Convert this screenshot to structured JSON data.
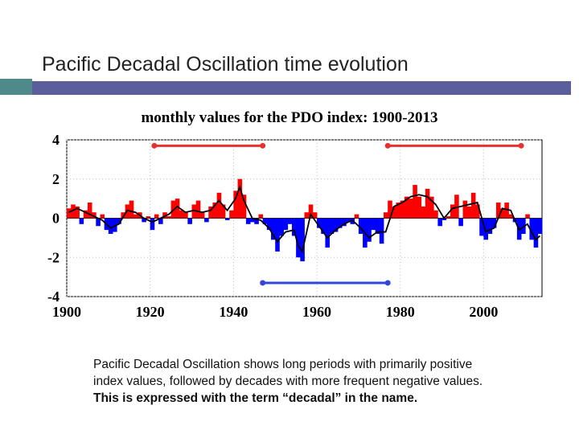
{
  "slide": {
    "title": "Pacific Decadal Oscillation time evolution",
    "caption_line1": "Pacific Decadal Oscillation shows long periods with primarily positive",
    "caption_line2": "index values, followed by decades with more frequent negative values.",
    "caption_line3": "This is expressed with the term “decadal” in the name."
  },
  "colors": {
    "positive": "#ff0000",
    "negative": "#0000ff",
    "smoothed": "#000000",
    "accent_bar": "#5a5f9c",
    "accent_teal": "#4f8a8b"
  },
  "chart_data": {
    "type": "bar",
    "title": "monthly values for the PDO index: 1900-2013",
    "xlabel": "",
    "ylabel": "",
    "xlim": [
      1900,
      2014
    ],
    "ylim": [
      -4,
      4
    ],
    "x_ticks": [
      1900,
      1920,
      1940,
      1960,
      1980,
      2000
    ],
    "y_ticks": [
      4,
      2,
      0,
      -2,
      -4
    ],
    "grid": true,
    "series": [
      {
        "kind": "annual_index_bars",
        "x": [
          1900,
          1901,
          1902,
          1903,
          1904,
          1905,
          1906,
          1907,
          1908,
          1909,
          1910,
          1911,
          1912,
          1913,
          1914,
          1915,
          1916,
          1917,
          1918,
          1919,
          1920,
          1921,
          1922,
          1923,
          1924,
          1925,
          1926,
          1927,
          1928,
          1929,
          1930,
          1931,
          1932,
          1933,
          1934,
          1935,
          1936,
          1937,
          1938,
          1939,
          1940,
          1941,
          1942,
          1943,
          1944,
          1945,
          1946,
          1947,
          1948,
          1949,
          1950,
          1951,
          1952,
          1953,
          1954,
          1955,
          1956,
          1957,
          1958,
          1959,
          1960,
          1961,
          1962,
          1963,
          1964,
          1965,
          1966,
          1967,
          1968,
          1969,
          1970,
          1971,
          1972,
          1973,
          1974,
          1975,
          1976,
          1977,
          1978,
          1979,
          1980,
          1981,
          1982,
          1983,
          1984,
          1985,
          1986,
          1987,
          1988,
          1989,
          1990,
          1991,
          1992,
          1993,
          1994,
          1995,
          1996,
          1997,
          1998,
          1999,
          2000,
          2001,
          2002,
          2003,
          2004,
          2005,
          2006,
          2007,
          2008,
          2009,
          2010,
          2011,
          2012,
          2013
        ],
        "values": [
          0.5,
          0.7,
          0.6,
          -0.3,
          0.4,
          0.8,
          0.3,
          -0.4,
          0.2,
          -0.6,
          -0.8,
          -0.7,
          -0.3,
          0.3,
          0.7,
          0.9,
          0.2,
          0.3,
          -0.2,
          0.1,
          -0.6,
          0.2,
          -0.3,
          0.3,
          0.1,
          0.9,
          1.0,
          0.4,
          0.3,
          -0.3,
          0.7,
          0.9,
          0.3,
          -0.2,
          0.6,
          0.8,
          1.3,
          0.7,
          -0.1,
          0.4,
          1.4,
          2.0,
          1.2,
          -0.3,
          -0.2,
          -0.3,
          0.2,
          -0.3,
          -0.6,
          -1.1,
          -1.7,
          -0.9,
          -0.6,
          -0.3,
          -0.9,
          -2.0,
          -2.2,
          0.3,
          0.7,
          0.3,
          -0.5,
          -0.8,
          -1.5,
          -0.8,
          -0.7,
          -0.5,
          -0.4,
          -0.2,
          -0.3,
          0.2,
          -0.8,
          -1.5,
          -1.2,
          -0.6,
          -0.8,
          -1.3,
          0.3,
          0.9,
          0.6,
          0.8,
          0.9,
          1.1,
          1.0,
          1.7,
          1.1,
          0.6,
          1.5,
          1.1,
          0.4,
          -0.4,
          -0.1,
          0.1,
          0.7,
          1.2,
          -0.4,
          0.9,
          0.6,
          1.3,
          0.7,
          -0.9,
          -1.1,
          -0.8,
          -0.5,
          0.8,
          0.5,
          0.8,
          0.2,
          -0.2,
          -1.1,
          -0.8,
          0.2,
          -1.1,
          -1.5,
          -0.8
        ]
      },
      {
        "kind": "smoothed_line",
        "x": [
          1900,
          1902,
          1904,
          1906,
          1908,
          1910,
          1912,
          1914,
          1916,
          1918,
          1920,
          1922,
          1924,
          1926,
          1928,
          1930,
          1932,
          1934,
          1936,
          1938,
          1940,
          1941,
          1942,
          1944,
          1946,
          1948,
          1950,
          1952,
          1954,
          1955,
          1956,
          1958,
          1960,
          1962,
          1964,
          1966,
          1968,
          1970,
          1972,
          1974,
          1976,
          1978,
          1980,
          1982,
          1984,
          1986,
          1988,
          1990,
          1992,
          1994,
          1996,
          1998,
          2000,
          2002,
          2004,
          2006,
          2008,
          2010,
          2012,
          2013
        ],
        "values": [
          0.3,
          0.5,
          0.3,
          0.1,
          -0.1,
          -0.5,
          -0.3,
          0.4,
          0.3,
          0.0,
          -0.2,
          0.0,
          0.2,
          0.6,
          0.3,
          0.4,
          0.3,
          0.4,
          0.9,
          0.4,
          1.0,
          1.6,
          0.9,
          0.0,
          -0.1,
          -0.5,
          -1.2,
          -0.7,
          -0.6,
          -1.4,
          -1.7,
          0.2,
          -0.4,
          -1.0,
          -0.6,
          -0.3,
          -0.1,
          -0.5,
          -1.0,
          -0.7,
          -0.7,
          0.6,
          0.8,
          1.1,
          1.2,
          1.1,
          0.7,
          0.0,
          0.5,
          0.6,
          0.7,
          0.8,
          -0.7,
          -0.5,
          0.5,
          0.4,
          -0.6,
          -0.3,
          -1.1,
          -0.9
        ]
      }
    ],
    "annotations": [
      {
        "type": "regime_bar",
        "color": "red",
        "y": 3.7,
        "x_start": 1921,
        "x_end": 1947
      },
      {
        "type": "regime_bar",
        "color": "red",
        "y": 3.7,
        "x_start": 1977,
        "x_end": 2009
      },
      {
        "type": "regime_bar",
        "color": "blue",
        "y": -3.3,
        "x_start": 1947,
        "x_end": 1977
      }
    ]
  }
}
